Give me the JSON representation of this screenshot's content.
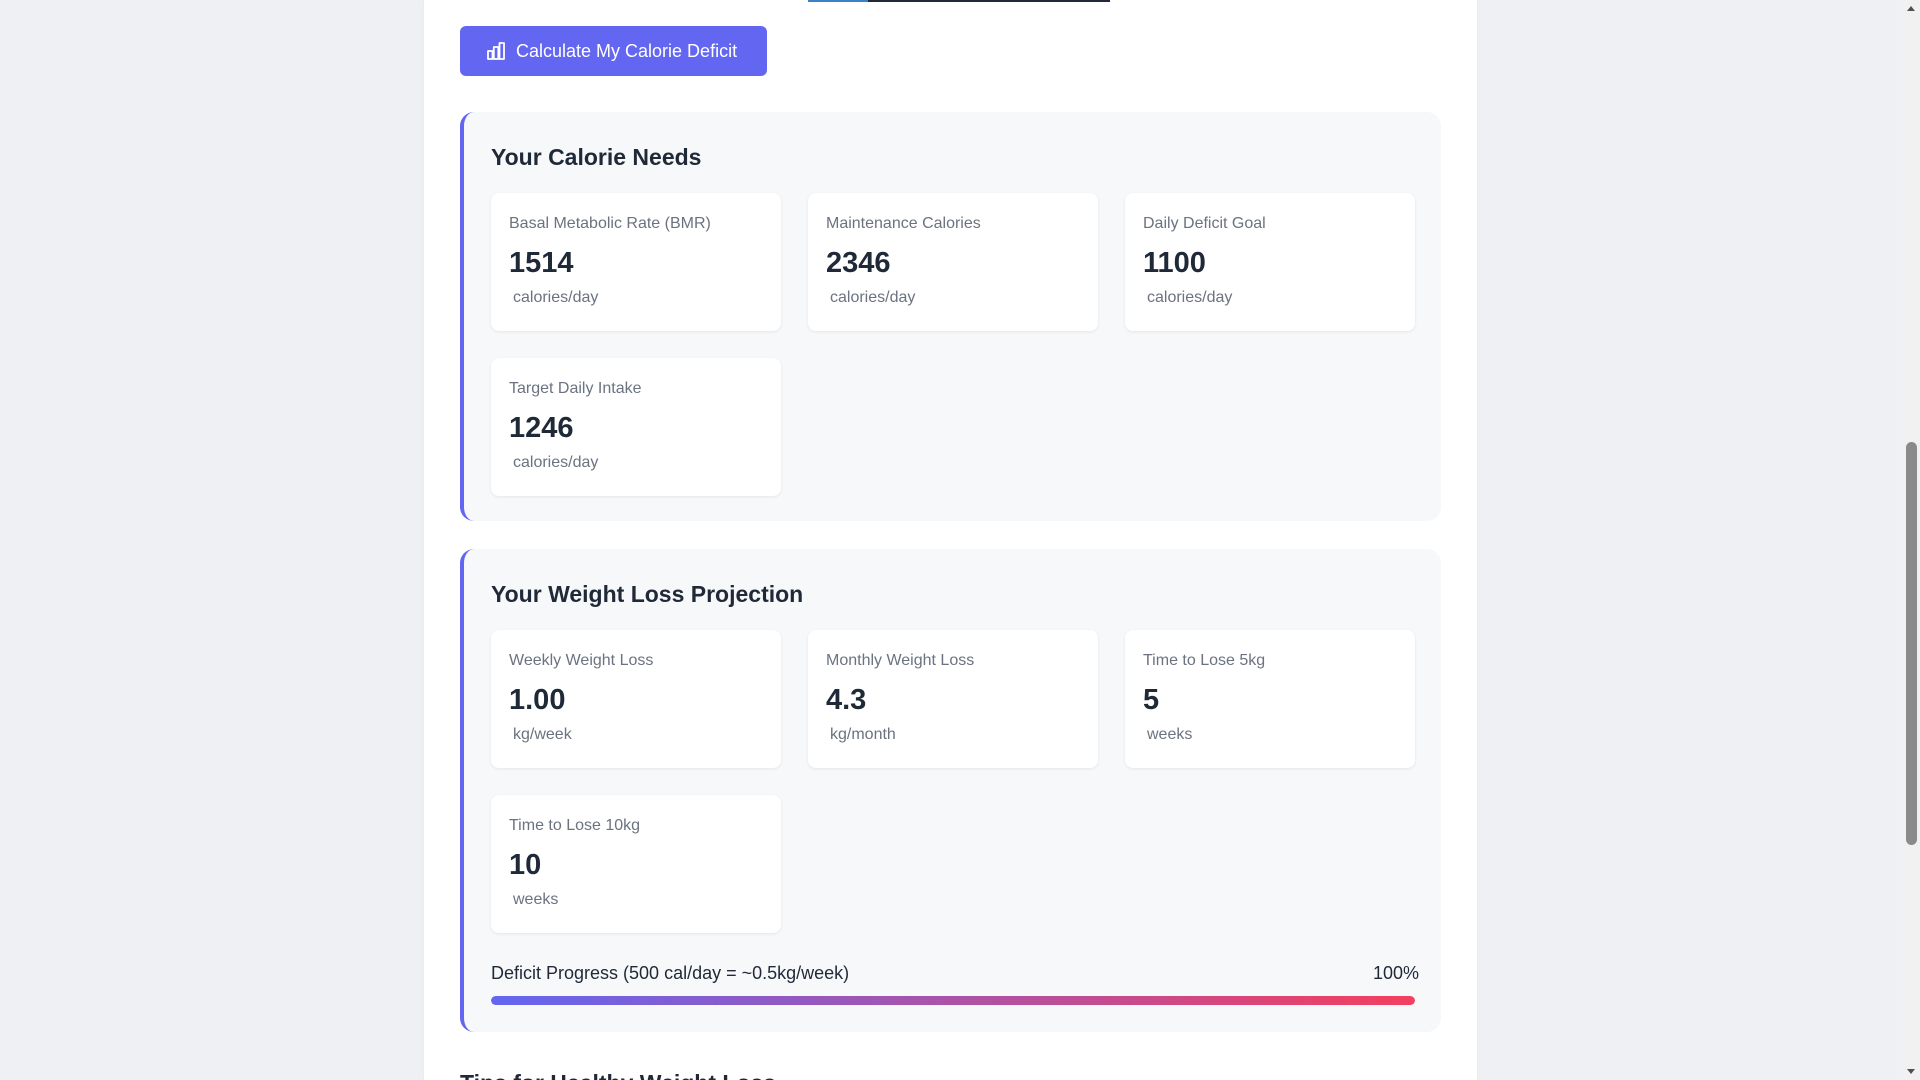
{
  "action_button": {
    "label": "Calculate My Calorie Deficit",
    "icon": "bar-chart-icon"
  },
  "calorie_needs": {
    "title": "Your Calorie Needs",
    "cards": [
      {
        "label": "Basal Metabolic Rate (BMR)",
        "value": "1514",
        "unit": "calories/day"
      },
      {
        "label": "Maintenance Calories",
        "value": "2346",
        "unit": "calories/day"
      },
      {
        "label": "Daily Deficit Goal",
        "value": "1100",
        "unit": "calories/day"
      },
      {
        "label": "Target Daily Intake",
        "value": "1246",
        "unit": "calories/day"
      }
    ]
  },
  "projection": {
    "title": "Your Weight Loss Projection",
    "cards": [
      {
        "label": "Weekly Weight Loss",
        "value": "1.00",
        "unit": "kg/week"
      },
      {
        "label": "Monthly Weight Loss",
        "value": "4.3",
        "unit": "kg/month"
      },
      {
        "label": "Time to Lose 5kg",
        "value": "5",
        "unit": "weeks"
      },
      {
        "label": "Time to Lose 10kg",
        "value": "10",
        "unit": "weeks"
      }
    ],
    "progress": {
      "label": "Deficit Progress (500 cal/day = ~0.5kg/week)",
      "percent_text": "100%",
      "percent": 100
    }
  },
  "next_section_title": "Tips for Healthy Weight Loss",
  "colors": {
    "accent": "#6366f1",
    "progress_start": "#6366f1",
    "progress_end": "#f43f5e"
  }
}
